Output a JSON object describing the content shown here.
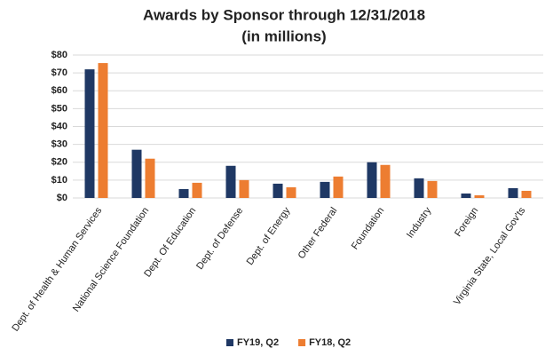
{
  "chart_data": {
    "type": "bar",
    "title": "Awards by Sponsor through 12/31/2018",
    "subtitle": "(in millions)",
    "categories": [
      "Dept. of Health & Human Services",
      "National Science Foundation",
      "Dept. Of Education",
      "Dept. of Defense",
      "Dept. of Energy",
      "Other Federal",
      "Foundation",
      "Industry",
      "Foreign",
      "Virginia State, Local Gov'ts"
    ],
    "series": [
      {
        "name": "FY19, Q2",
        "color": "#1f3864",
        "values": [
          72,
          27,
          5,
          18,
          8,
          9,
          20,
          11,
          2.5,
          5.5
        ]
      },
      {
        "name": "FY18, Q2",
        "color": "#ed7d31",
        "values": [
          75.5,
          22,
          8.5,
          10,
          6,
          12,
          18.5,
          9.5,
          1.5,
          4
        ]
      }
    ],
    "ylim": [
      0,
      80
    ],
    "yticks": [
      {
        "value": 0,
        "label": "$0"
      },
      {
        "value": 10,
        "label": "$10"
      },
      {
        "value": 20,
        "label": "$20"
      },
      {
        "value": 30,
        "label": "$30"
      },
      {
        "value": 40,
        "label": "$40"
      },
      {
        "value": 50,
        "label": "$50"
      },
      {
        "value": 60,
        "label": "$60"
      },
      {
        "value": 70,
        "label": "$70"
      },
      {
        "value": 80,
        "label": "$80"
      }
    ],
    "grid": true,
    "legend": "bottom"
  }
}
